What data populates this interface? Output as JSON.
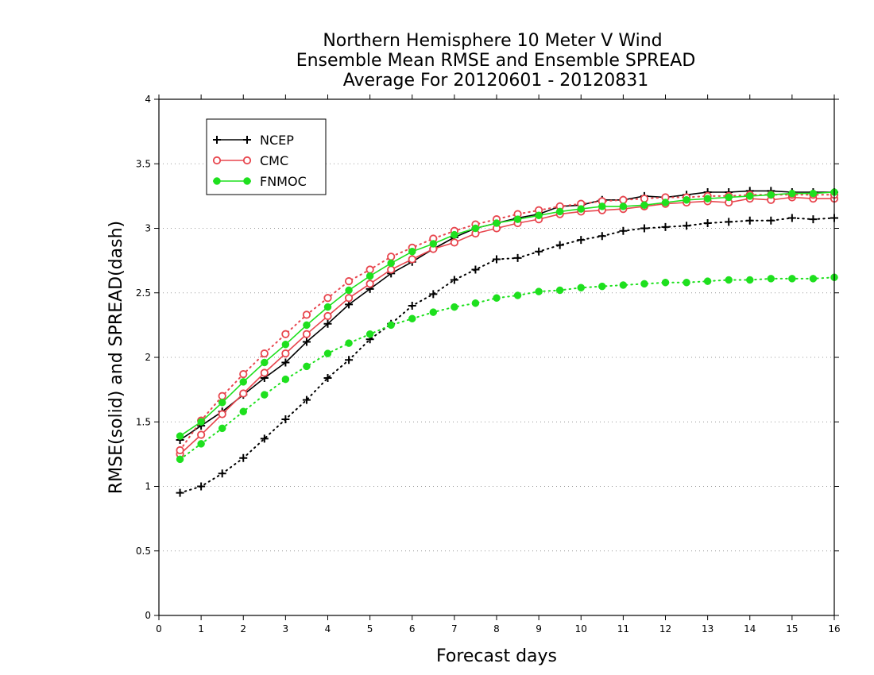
{
  "chart_data": {
    "type": "line",
    "title_lines": [
      "Northern Hemisphere 10 Meter V Wind",
      "Ensemble Mean RMSE and Ensemble SPREAD",
      "Average For 20120601 - 20120831"
    ],
    "xlabel": "Forecast days",
    "ylabel": "RMSE(solid) and SPREAD(dash)",
    "xlim": [
      0,
      16
    ],
    "ylim": [
      0,
      4
    ],
    "x_ticks": [
      "0",
      "1",
      "2",
      "3",
      "4",
      "5",
      "6",
      "7",
      "8",
      "9",
      "10",
      "11",
      "12",
      "13",
      "14",
      "15",
      "16"
    ],
    "y_ticks": [
      "0",
      "0.5",
      "1",
      "1.5",
      "2",
      "2.5",
      "3",
      "3.5",
      "4"
    ],
    "grid": "horizontal dotted",
    "legend_placement": "top-left",
    "legend": [
      "NCEP",
      "CMC",
      "FNMOC"
    ],
    "x": [
      0.5,
      1,
      1.5,
      2,
      2.5,
      3,
      3.5,
      4,
      4.5,
      5,
      5.5,
      6,
      6.5,
      7,
      7.5,
      8,
      8.5,
      9,
      9.5,
      10,
      10.5,
      11,
      11.5,
      12,
      12.5,
      13,
      13.5,
      14,
      14.5,
      15,
      15.5,
      16
    ],
    "series": [
      {
        "name": "NCEP",
        "kind": "rmse",
        "color": "#000000",
        "marker": "plus",
        "values": [
          1.36,
          1.47,
          1.58,
          1.71,
          1.84,
          1.96,
          2.12,
          2.26,
          2.41,
          2.53,
          2.65,
          2.74,
          2.84,
          2.93,
          3.0,
          3.04,
          3.08,
          3.11,
          3.17,
          3.18,
          3.22,
          3.22,
          3.25,
          3.24,
          3.26,
          3.28,
          3.28,
          3.29,
          3.29,
          3.28,
          3.28,
          3.28
        ]
      },
      {
        "name": "NCEP",
        "kind": "spread",
        "color": "#000000",
        "marker": "plus",
        "values": [
          0.95,
          1.0,
          1.1,
          1.22,
          1.37,
          1.52,
          1.67,
          1.84,
          1.98,
          2.14,
          2.26,
          2.4,
          2.49,
          2.6,
          2.68,
          2.76,
          2.77,
          2.82,
          2.87,
          2.91,
          2.94,
          2.98,
          3.0,
          3.01,
          3.02,
          3.04,
          3.05,
          3.06,
          3.06,
          3.08,
          3.07,
          3.08
        ]
      },
      {
        "name": "CMC",
        "kind": "rmse",
        "color": "#e8464e",
        "marker": "open-circle",
        "values": [
          1.25,
          1.4,
          1.56,
          1.72,
          1.88,
          2.03,
          2.18,
          2.32,
          2.46,
          2.57,
          2.68,
          2.76,
          2.84,
          2.89,
          2.96,
          3.0,
          3.04,
          3.07,
          3.11,
          3.13,
          3.14,
          3.15,
          3.17,
          3.19,
          3.2,
          3.21,
          3.2,
          3.23,
          3.22,
          3.24,
          3.23,
          3.23
        ]
      },
      {
        "name": "CMC",
        "kind": "spread",
        "color": "#e8464e",
        "marker": "open-circle",
        "values": [
          1.28,
          1.51,
          1.7,
          1.87,
          2.03,
          2.18,
          2.33,
          2.46,
          2.59,
          2.68,
          2.78,
          2.85,
          2.92,
          2.98,
          3.03,
          3.07,
          3.11,
          3.14,
          3.17,
          3.19,
          3.21,
          3.22,
          3.23,
          3.24,
          3.24,
          3.25,
          3.25,
          3.26,
          3.26,
          3.26,
          3.26,
          3.26
        ]
      },
      {
        "name": "FNMOC",
        "kind": "rmse",
        "color": "#1ee01e",
        "marker": "filled-circle",
        "values": [
          1.39,
          1.5,
          1.65,
          1.81,
          1.96,
          2.1,
          2.25,
          2.39,
          2.52,
          2.63,
          2.73,
          2.82,
          2.88,
          2.95,
          3.0,
          3.04,
          3.07,
          3.1,
          3.13,
          3.15,
          3.17,
          3.17,
          3.18,
          3.2,
          3.22,
          3.23,
          3.24,
          3.25,
          3.26,
          3.27,
          3.27,
          3.28
        ]
      },
      {
        "name": "FNMOC",
        "kind": "spread",
        "color": "#1ee01e",
        "marker": "filled-circle",
        "values": [
          1.21,
          1.33,
          1.45,
          1.58,
          1.71,
          1.83,
          1.93,
          2.03,
          2.11,
          2.18,
          2.25,
          2.3,
          2.35,
          2.39,
          2.42,
          2.46,
          2.48,
          2.51,
          2.52,
          2.54,
          2.55,
          2.56,
          2.57,
          2.58,
          2.58,
          2.59,
          2.6,
          2.6,
          2.61,
          2.61,
          2.61,
          2.62
        ]
      }
    ]
  }
}
